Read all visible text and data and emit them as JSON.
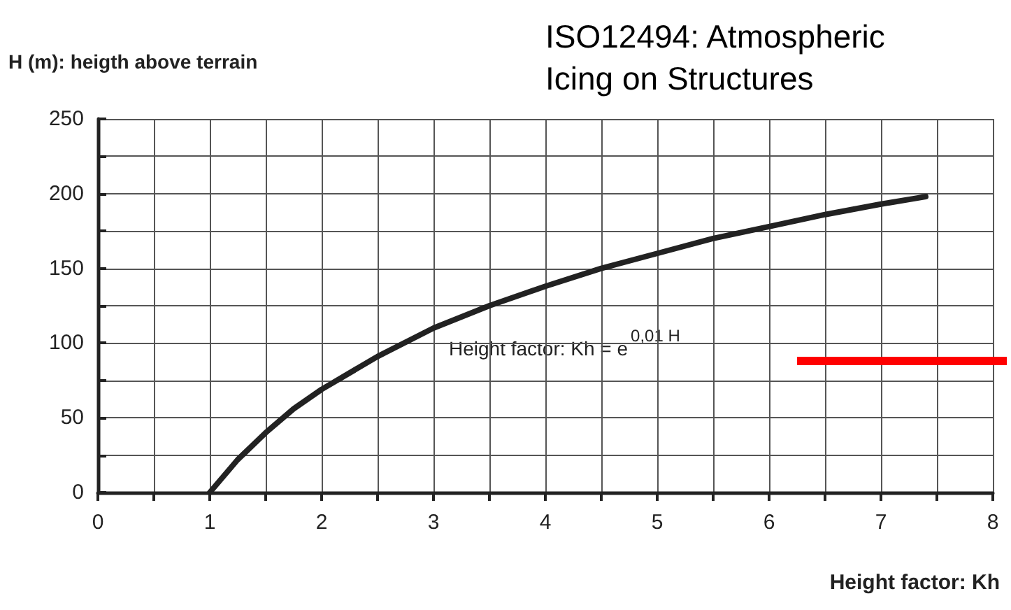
{
  "chart_data": {
    "type": "line",
    "title": "ISO12494: Atmospheric\nIcing on Structures",
    "ylabel": "H (m): heigth above terrain",
    "xlabel": "Height factor: Kh",
    "annotations": [
      "Height factor: Kh = e$^{0,01 H}$"
    ],
    "x": [
      1,
      1.25,
      1.5,
      1.75,
      2,
      2.5,
      3,
      3.5,
      4,
      4.5,
      5,
      5.5,
      6,
      6.5,
      7,
      7.4
    ],
    "series": [
      {
        "color": "#222222",
        "values": [
          0,
          22,
          40,
          56,
          69,
          91,
          110,
          125,
          138,
          150,
          160,
          170,
          178,
          186,
          193,
          198
        ]
      }
    ],
    "xlim": [
      0,
      8
    ],
    "ylim": [
      0,
      250
    ],
    "xticks": [
      0,
      {
        "value": 0.5,
        "label": null
      },
      1,
      {
        "value": 1.5,
        "label": null
      },
      2,
      {
        "value": 2.5,
        "label": null
      },
      3,
      {
        "value": 3.5,
        "label": null
      },
      4,
      {
        "value": 4.5,
        "label": null
      },
      5,
      {
        "value": 5.5,
        "label": null
      },
      6,
      {
        "value": 6.5,
        "label": null
      },
      7,
      {
        "value": 7.5,
        "label": null
      },
      8
    ],
    "yticks": [
      0,
      {
        "value": 25,
        "label": null
      },
      50,
      {
        "value": 75,
        "label": null
      },
      100,
      {
        "value": 125,
        "label": null
      },
      150,
      {
        "value": 175,
        "label": null
      },
      200,
      {
        "value": 225,
        "label": null
      },
      250
    ],
    "ref_lines": [
      {
        "axis": "y",
        "value": 88,
        "color": "#ff0000"
      }
    ],
    "grid": true,
    "marker": "none",
    "line_style": "solid"
  }
}
